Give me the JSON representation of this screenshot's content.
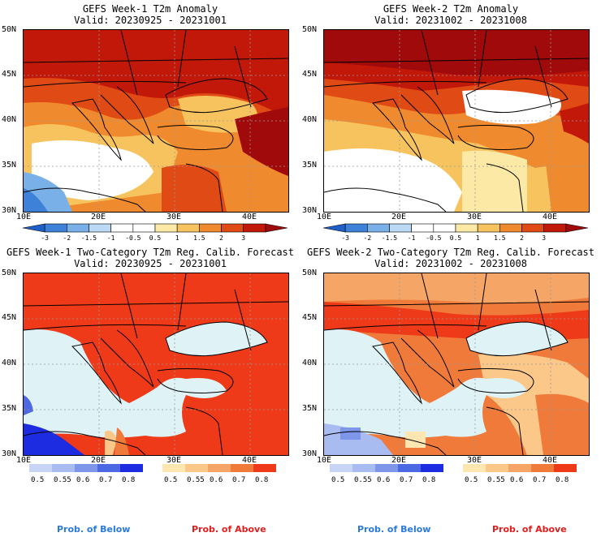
{
  "panels": [
    {
      "id": "p1",
      "title": "GEFS Week-1 T2m Anomaly",
      "valid": "Valid: 20230925 - 20231001"
    },
    {
      "id": "p2",
      "title": "GEFS Week-2 T2m Anomaly",
      "valid": "Valid: 20231002 - 20231008"
    },
    {
      "id": "p3",
      "title": "GEFS Week-1 Two-Category T2m Reg. Calib. Forecast",
      "valid": "Valid: 20230925 - 20231001"
    },
    {
      "id": "p4",
      "title": "GEFS Week-2 Two-Category T2m Reg. Calib. Forecast",
      "valid": "Valid: 20231002 - 20231008"
    }
  ],
  "axes": {
    "lat_ticks": [
      "50N",
      "45N",
      "40N",
      "35N",
      "30N"
    ],
    "lon_ticks": [
      "10E",
      "20E",
      "30E",
      "40E"
    ]
  },
  "anomaly_colorbar": {
    "labels": [
      "-3",
      "-2",
      "-1.5",
      "-1",
      "-0.5",
      "0.5",
      "1",
      "1.5",
      "2",
      "3"
    ],
    "colors": [
      "#1f5fc8",
      "#3d82d8",
      "#7ab0e8",
      "#bcdaf5",
      "#ffffff",
      "#ffffff",
      "#fce9a6",
      "#f7c35e",
      "#f08a2e",
      "#e04a14",
      "#c2180a",
      "#a00a0a"
    ]
  },
  "prob_below_colorbar": {
    "labels": [
      "0.5",
      "0.55",
      "0.6",
      "0.7",
      "0.8"
    ],
    "colors": [
      "#c8d4f5",
      "#a9bcf2",
      "#7d96ea",
      "#4c68e4",
      "#1d2ce0"
    ]
  },
  "prob_above_colorbar": {
    "labels": [
      "0.5",
      "0.55",
      "0.6",
      "0.7",
      "0.8"
    ],
    "colors": [
      "#fde6b0",
      "#fbc88a",
      "#f5a565",
      "#f07a3a",
      "#ee3a18"
    ]
  },
  "footer": {
    "below_label": "Prob. of Below",
    "above_label": "Prob. of Above",
    "below_color": "#2a7ad6",
    "above_color": "#e01e1e"
  },
  "colors": {
    "sea": "#dff3f7",
    "above_strong": "#ee3a18",
    "below_strong": "#1d2ce0"
  }
}
